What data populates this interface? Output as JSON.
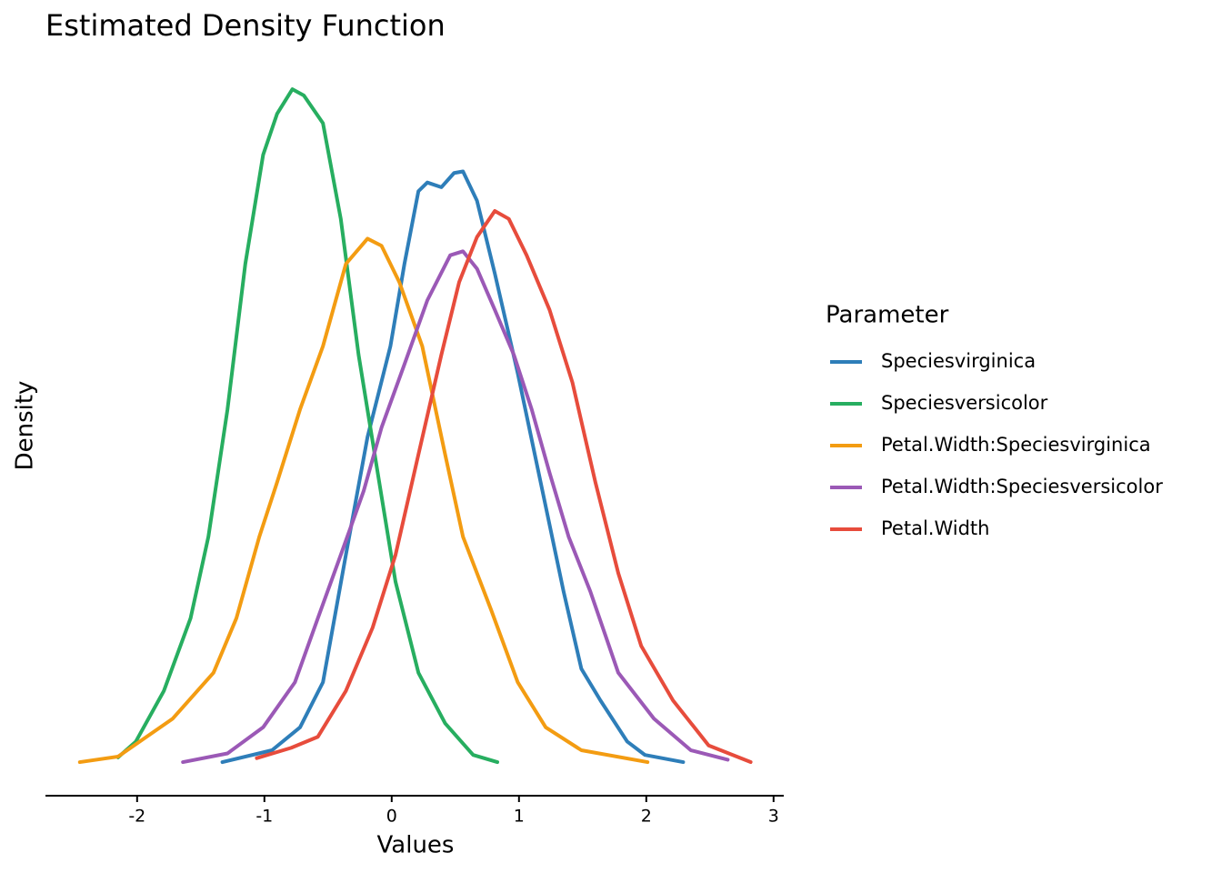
{
  "chart_data": {
    "type": "line",
    "title": "Estimated Density Function",
    "x_label": "Values",
    "y_label": "Density",
    "legend_title": "Parameter",
    "legend": "right",
    "xlim": [
      -2.72,
      3.08
    ],
    "xticks": [
      -2,
      -1,
      0,
      1,
      2,
      3
    ],
    "ylim": [
      -0.0425,
      0.8925
    ],
    "series": [
      {
        "name": "Speciesvirginica",
        "color": "#2e7eb9",
        "x": [
          -1.33,
          -0.94,
          -0.72,
          -0.54,
          -0.36,
          -0.19,
          -0.01,
          0.1,
          0.21,
          0.28,
          0.39,
          0.49,
          0.56,
          0.67,
          0.81,
          0.99,
          1.17,
          1.35,
          1.49,
          1.64,
          1.85,
          1.99,
          2.29
        ],
        "values": [
          0,
          0.015,
          0.044,
          0.101,
          0.262,
          0.411,
          0.526,
          0.63,
          0.722,
          0.733,
          0.727,
          0.745,
          0.747,
          0.71,
          0.618,
          0.492,
          0.354,
          0.216,
          0.118,
          0.078,
          0.026,
          0.009,
          0
        ]
      },
      {
        "name": "Speciesversicolor",
        "color": "#27ae60",
        "x": [
          -2.15,
          -2.01,
          -1.79,
          -1.58,
          -1.44,
          -1.29,
          -1.15,
          -1.01,
          -0.9,
          -0.78,
          -0.69,
          -0.54,
          -0.4,
          -0.26,
          -0.11,
          0.03,
          0.21,
          0.42,
          0.64,
          0.83
        ],
        "values": [
          0.006,
          0.026,
          0.09,
          0.182,
          0.285,
          0.446,
          0.63,
          0.768,
          0.82,
          0.851,
          0.843,
          0.808,
          0.687,
          0.515,
          0.366,
          0.228,
          0.113,
          0.049,
          0.009,
          0
        ]
      },
      {
        "name": "Petal.Width:Speciesvirginica",
        "color": "#f39c12",
        "x": [
          -2.45,
          -2.15,
          -1.72,
          -1.4,
          -1.22,
          -1.04,
          -0.9,
          -0.72,
          -0.54,
          -0.36,
          -0.19,
          -0.08,
          0.06,
          0.24,
          0.42,
          0.56,
          0.78,
          0.99,
          1.21,
          1.49,
          2.01
        ],
        "values": [
          0,
          0.007,
          0.055,
          0.113,
          0.182,
          0.285,
          0.354,
          0.446,
          0.526,
          0.63,
          0.662,
          0.653,
          0.607,
          0.526,
          0.389,
          0.285,
          0.193,
          0.101,
          0.044,
          0.015,
          0
        ]
      },
      {
        "name": "Petal.Width:Speciesversicolor",
        "color": "#9b59b6",
        "x": [
          -1.64,
          -1.29,
          -1.01,
          -0.76,
          -0.58,
          -0.4,
          -0.22,
          -0.08,
          0.1,
          0.28,
          0.46,
          0.56,
          0.67,
          0.81,
          0.96,
          1.1,
          1.24,
          1.39,
          1.56,
          1.78,
          2.06,
          2.35,
          2.64
        ],
        "values": [
          0,
          0.011,
          0.044,
          0.101,
          0.182,
          0.262,
          0.343,
          0.423,
          0.503,
          0.584,
          0.641,
          0.646,
          0.624,
          0.572,
          0.515,
          0.446,
          0.366,
          0.285,
          0.216,
          0.113,
          0.055,
          0.015,
          0.003
        ]
      },
      {
        "name": "Petal.Width",
        "color": "#e74c3c",
        "x": [
          -1.06,
          -0.79,
          -0.58,
          -0.36,
          -0.15,
          0.03,
          0.21,
          0.39,
          0.53,
          0.67,
          0.81,
          0.92,
          1.06,
          1.24,
          1.42,
          1.6,
          1.78,
          1.96,
          2.21,
          2.49,
          2.82
        ],
        "values": [
          0.005,
          0.018,
          0.032,
          0.09,
          0.17,
          0.262,
          0.389,
          0.515,
          0.607,
          0.664,
          0.697,
          0.687,
          0.641,
          0.572,
          0.48,
          0.354,
          0.239,
          0.147,
          0.078,
          0.021,
          0
        ]
      }
    ]
  }
}
